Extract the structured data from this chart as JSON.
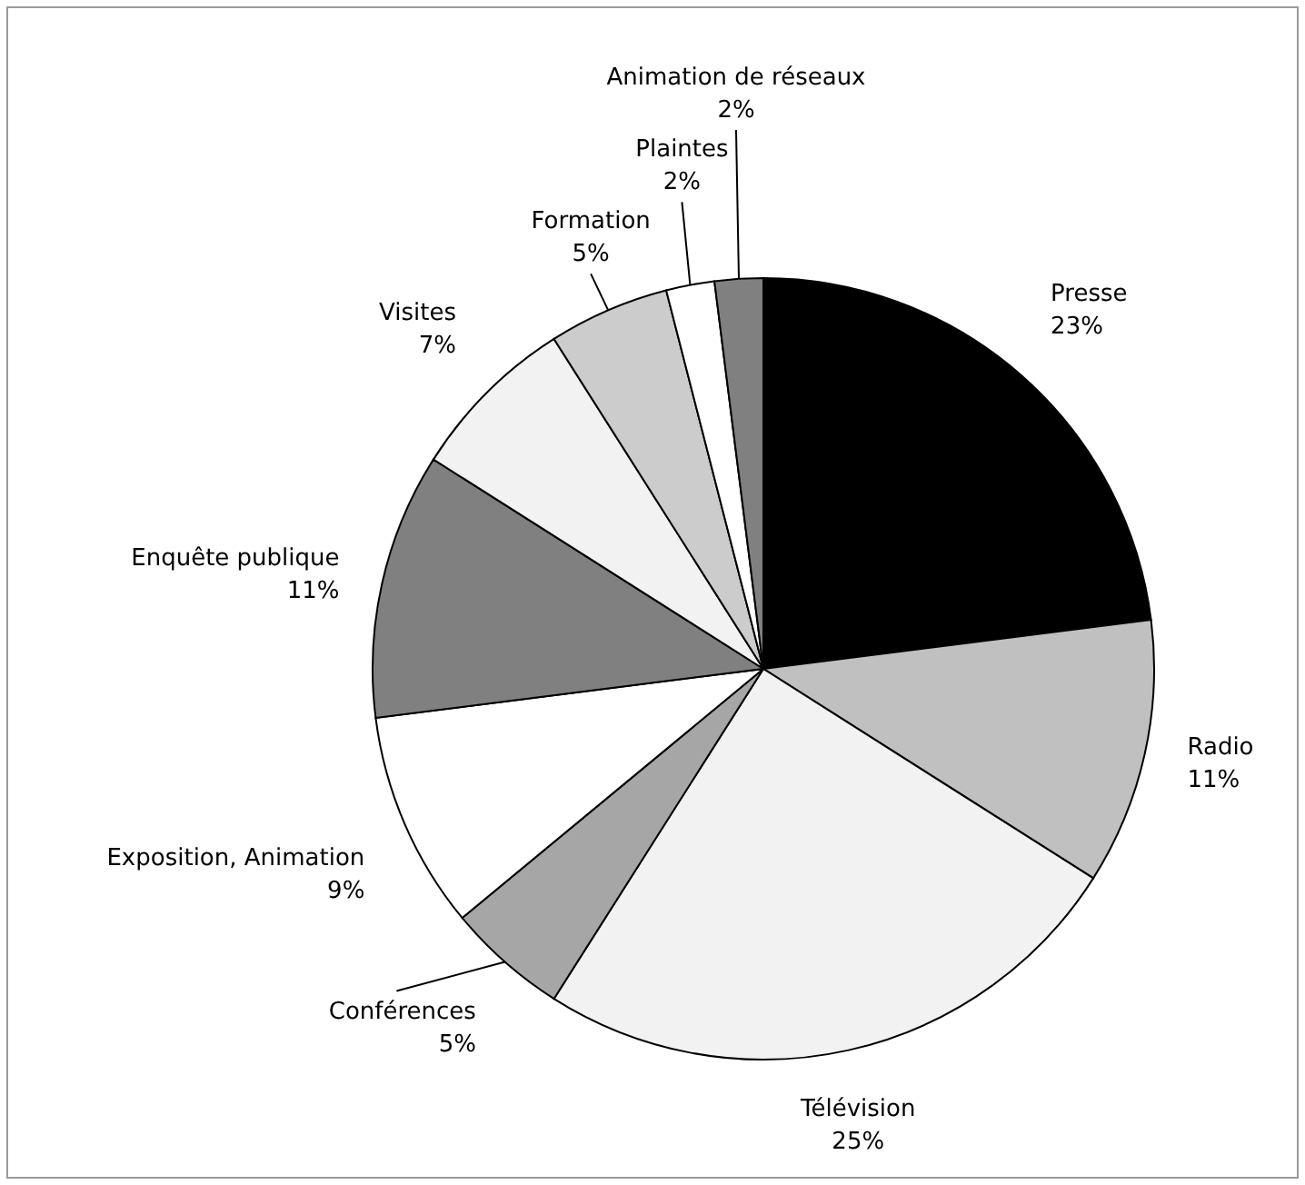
{
  "chart_data": {
    "type": "pie",
    "categories": [
      "Presse",
      "Radio",
      "Télévision",
      "Conférences",
      "Exposition, Animation",
      "Enquête publique",
      "Visites",
      "Formation",
      "Plaintes",
      "Animation de réseaux"
    ],
    "values": [
      23,
      11,
      25,
      5,
      9,
      11,
      7,
      5,
      2,
      2
    ],
    "colors": [
      "#000000",
      "#c0c0c0",
      "#f2f2f2",
      "#a6a6a6",
      "#ffffff",
      "#808080",
      "#f2f2f2",
      "#cccccc",
      "#ffffff",
      "#808080"
    ],
    "value_labels": [
      "23%",
      "11%",
      "25%",
      "5%",
      "9%",
      "11%",
      "7%",
      "5%",
      "2%",
      "2%"
    ]
  }
}
